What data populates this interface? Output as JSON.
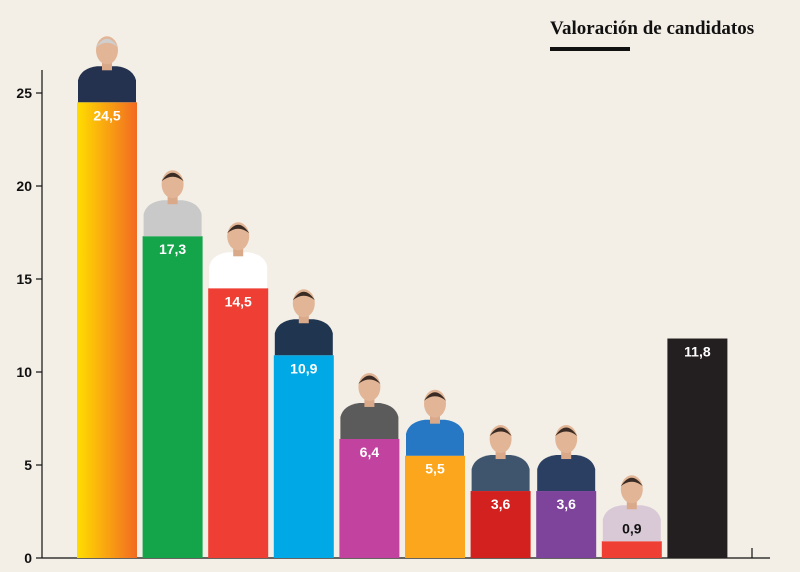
{
  "chart_data": {
    "type": "bar",
    "title": "Valoración de candidatos",
    "xlabel": "",
    "ylabel": "",
    "ylim": [
      0,
      26
    ],
    "yticks": [
      0,
      5,
      10,
      15,
      20,
      25
    ],
    "grid": false,
    "legend": "none",
    "values": [
      24.5,
      17.3,
      14.5,
      10.9,
      6.4,
      5.5,
      3.6,
      3.6,
      0.9,
      11.8
    ],
    "labels": [
      "24,5",
      "17,3",
      "14,5",
      "10,9",
      "6,4",
      "5,5",
      "3,6",
      "3,6",
      "0,9",
      "11,8"
    ],
    "colors": [
      "#fcc210",
      "#14a54b",
      "#ef3e33",
      "#00a9e6",
      "#c2439f",
      "#fba61d",
      "#d3211f",
      "#7e449b",
      "#ef3e33",
      "#231f20"
    ],
    "gradient_first": [
      "#ffdd00",
      "#f26a21"
    ],
    "label_colors": [
      "#ffffff",
      "#ffffff",
      "#ffffff",
      "#ffffff",
      "#ffffff",
      "#ffffff",
      "#ffffff",
      "#ffffff",
      "#111111",
      "#ffffff"
    ],
    "has_photo": [
      true,
      true,
      true,
      true,
      true,
      true,
      true,
      true,
      true,
      false
    ]
  }
}
